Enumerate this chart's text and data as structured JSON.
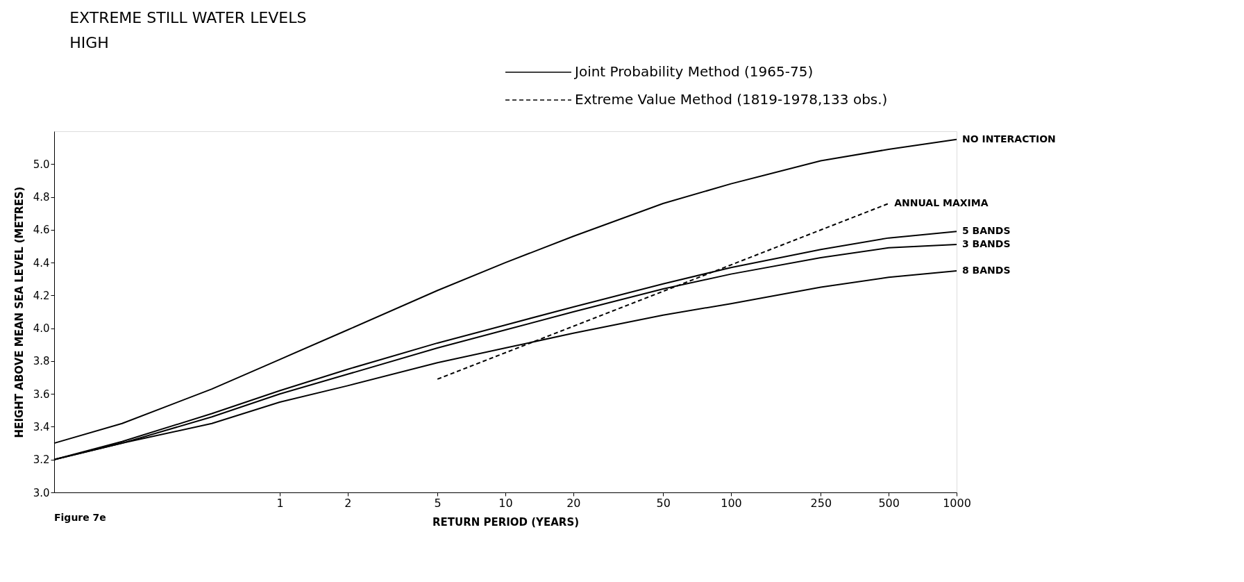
{
  "chart_data": {
    "type": "line",
    "title": "EXTREME STILL WATER LEVELS",
    "subtitle": "HIGH",
    "xlabel": "RETURN PERIOD (YEARS)",
    "ylabel": "HEIGHT ABOVE MEAN SEA LEVEL (METRES)",
    "log": "x",
    "xlim": [
      0.1,
      1000
    ],
    "xticks": [
      1,
      2,
      5,
      10,
      20,
      50,
      100,
      250,
      500,
      1000
    ],
    "ylim": [
      3.0,
      5.2
    ],
    "yticks": [
      {
        "value": 3,
        "label": "3.0"
      },
      3.2,
      3.4,
      3.6,
      3.8,
      {
        "value": 4,
        "label": "4.0"
      },
      4.2,
      4.4,
      4.6,
      4.8,
      {
        "value": 5,
        "label": "5.0"
      }
    ],
    "grid": false,
    "marker": "none",
    "x": [
      0.1,
      0.2,
      0.5,
      1,
      2,
      5,
      10,
      20,
      50,
      100,
      250,
      500,
      1000
    ],
    "series": [
      {
        "name": "NO INTERACTION",
        "color": "#000000",
        "line_style": "solid",
        "values": [
          3.3,
          3.42,
          3.63,
          3.81,
          3.99,
          4.23,
          4.4,
          4.56,
          4.76,
          4.88,
          5.02,
          5.09,
          5.15
        ]
      },
      {
        "name": "ANNUAL MAXIMA",
        "color": "#000000",
        "line_style": "dashed",
        "x": [
          5,
          500
        ],
        "values": [
          3.69,
          4.76
        ]
      },
      {
        "name": "5 BANDS",
        "color": "#000000",
        "line_style": "solid",
        "values": [
          3.2,
          3.31,
          3.48,
          3.62,
          3.75,
          3.91,
          4.02,
          4.13,
          4.27,
          4.37,
          4.48,
          4.55,
          4.59
        ]
      },
      {
        "name": "3 BANDS",
        "color": "#000000",
        "line_style": "solid",
        "values": [
          3.2,
          3.3,
          3.46,
          3.6,
          3.72,
          3.88,
          3.99,
          4.1,
          4.24,
          4.33,
          4.43,
          4.49,
          4.51
        ]
      },
      {
        "name": "8 BANDS",
        "color": "#000000",
        "line_style": "solid",
        "values": [
          3.2,
          3.3,
          3.42,
          3.55,
          3.65,
          3.79,
          3.88,
          3.97,
          4.08,
          4.15,
          4.25,
          4.31,
          4.35
        ]
      }
    ],
    "annotations": [
      "Joint Probability Method (1965-75)",
      "Extreme Value Method (1819-1978,133 obs.)",
      "Figure 7e"
    ]
  }
}
